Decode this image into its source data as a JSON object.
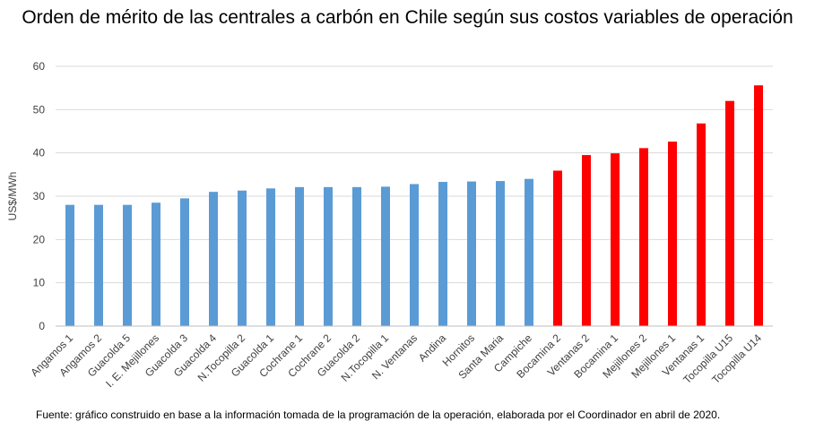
{
  "title": "Orden de mérito de las centrales a carbón en Chile según sus costos variables de operación",
  "source": "Fuente: gráfico construido en base a la información tomada de la programación de la operación, elaborada por el Coordinador en abril de 2020.",
  "colors": {
    "blue": "#5b9bd5",
    "red": "#ff0000",
    "grid": "#d9d9d9"
  },
  "chart_data": {
    "type": "bar",
    "title": "Orden de mérito de las centrales a carbón en Chile según sus costos variables de operación",
    "xlabel": "",
    "ylabel": "US$/MWh",
    "ylim": [
      0,
      60
    ],
    "yticks": [
      0,
      10,
      20,
      30,
      40,
      50,
      60
    ],
    "grid": true,
    "legend": "none",
    "categories": [
      "Angamos 1",
      "Angamos 2",
      "Guacolda 5",
      "I. E. Mejillones",
      "Guacolda 3",
      "Guacolda 4",
      "N.Tocopilla 2",
      "Guacolda 1",
      "Cochrane 1",
      "Cochrane 2",
      "Guacolda 2",
      "N.Tocopilla 1",
      "N. Ventanas",
      "Andina",
      "Hornitos",
      "Santa Maria",
      "Campiche",
      "Bocamina 2",
      "Ventanas 2",
      "Bocamina 1",
      "Mejillones 2",
      "Mejillones 1",
      "Ventanas 1",
      "Tocopilla U15",
      "Tocopilla U14"
    ],
    "values": [
      28.0,
      28.0,
      28.0,
      28.5,
      29.5,
      31.0,
      31.3,
      31.8,
      32.1,
      32.1,
      32.1,
      32.2,
      32.8,
      33.3,
      33.4,
      33.5,
      34.0,
      35.9,
      39.5,
      39.9,
      41.1,
      42.6,
      46.8,
      52.0,
      55.6
    ],
    "bar_colors": [
      "blue",
      "blue",
      "blue",
      "blue",
      "blue",
      "blue",
      "blue",
      "blue",
      "blue",
      "blue",
      "blue",
      "blue",
      "blue",
      "blue",
      "blue",
      "blue",
      "blue",
      "red",
      "red",
      "red",
      "red",
      "red",
      "red",
      "red",
      "red"
    ]
  }
}
